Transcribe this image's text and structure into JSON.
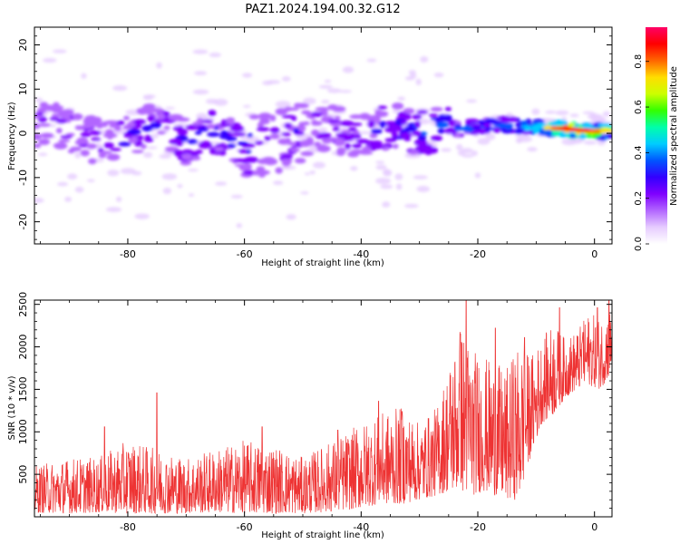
{
  "title": "PAZ1.2024.194.00.32.G12",
  "chart_data": [
    {
      "type": "heatmap",
      "name": "spectrogram",
      "xlabel": "Height of straight line (km)",
      "ylabel": "Frequency (Hz)",
      "xlim": [
        -96,
        3
      ],
      "ylim": [
        -25,
        24
      ],
      "xticks": [
        -80,
        -60,
        -40,
        -20,
        0
      ],
      "yticks": [
        -20,
        -10,
        0,
        10,
        20
      ],
      "colorbar": {
        "label": "Normalized spectral amplitude",
        "range": [
          0.0,
          0.95
        ],
        "ticks": [
          0.0,
          0.2,
          0.4,
          0.6,
          0.8
        ],
        "colormap": [
          "#ffffff",
          "#e6ccff",
          "#b266ff",
          "#7f00ff",
          "#3300ff",
          "#0055ff",
          "#00ccff",
          "#00ffaa",
          "#33ff00",
          "#ccff00",
          "#ffdd00",
          "#ff6600",
          "#ff0000",
          "#ff0066"
        ]
      },
      "ridge": {
        "description_free": true,
        "center_hz": [
          [
            -95,
            2
          ],
          [
            -90,
            1
          ],
          [
            -85,
            -2
          ],
          [
            -80,
            -1
          ],
          [
            -75,
            2
          ],
          [
            -70,
            -2
          ],
          [
            -65,
            0
          ],
          [
            -60,
            -3
          ],
          [
            -55,
            -2
          ],
          [
            -50,
            0
          ],
          [
            -45,
            1
          ],
          [
            -40,
            -1
          ],
          [
            -35,
            2
          ],
          [
            -30,
            0
          ],
          [
            -25,
            1
          ],
          [
            -20,
            1.5
          ],
          [
            -15,
            2
          ],
          [
            -10,
            1.5
          ],
          [
            -5,
            1
          ],
          [
            0,
            0.5
          ],
          [
            3,
            0.5
          ]
        ],
        "peak_amplitude": [
          [
            -95,
            0.25
          ],
          [
            -80,
            0.3
          ],
          [
            -65,
            0.35
          ],
          [
            -55,
            0.3
          ],
          [
            -40,
            0.3
          ],
          [
            -30,
            0.4
          ],
          [
            -22,
            0.45
          ],
          [
            -15,
            0.5
          ],
          [
            -10,
            0.6
          ],
          [
            -6,
            0.85
          ],
          [
            -2,
            0.9
          ],
          [
            3,
            0.7
          ]
        ]
      }
    },
    {
      "type": "line",
      "name": "snr",
      "xlabel": "Height of straight line (km)",
      "ylabel": "SNR (10 * v/v)",
      "xlim": [
        -96,
        3
      ],
      "ylim": [
        0,
        2550
      ],
      "xticks": [
        -80,
        -60,
        -40,
        -20,
        0
      ],
      "yticks": [
        500,
        1000,
        1500,
        2000,
        2500
      ],
      "color": "#ee3333",
      "envelope": {
        "x": [
          -96,
          -90,
          -85,
          -80,
          -75,
          -70,
          -65,
          -60,
          -55,
          -50,
          -45,
          -40,
          -37,
          -33,
          -30,
          -27,
          -25,
          -23,
          -21,
          -19,
          -17,
          -15,
          -13,
          -11,
          -9,
          -7,
          -5,
          -3,
          -1,
          1,
          3
        ],
        "low": [
          50,
          40,
          50,
          40,
          40,
          40,
          50,
          40,
          40,
          40,
          60,
          100,
          150,
          150,
          200,
          250,
          300,
          300,
          250,
          300,
          250,
          200,
          200,
          700,
          1100,
          1200,
          1400,
          1500,
          1550,
          1500,
          1700
        ],
        "high": [
          600,
          700,
          700,
          900,
          800,
          700,
          800,
          900,
          850,
          700,
          900,
          1100,
          1200,
          1300,
          1100,
          1300,
          1800,
          2300,
          2000,
          1900,
          1800,
          1750,
          2050,
          1900,
          2100,
          2300,
          2100,
          2200,
          2400,
          2350,
          2500
        ]
      },
      "peaks": [
        [
          -84,
          1060
        ],
        [
          -75,
          1460
        ],
        [
          -57,
          1060
        ],
        [
          -44,
          1020
        ],
        [
          -37,
          1360
        ],
        [
          -33,
          1240
        ],
        [
          -23,
          2150
        ],
        [
          -22,
          2560
        ],
        [
          -17,
          2220
        ],
        [
          -12,
          2110
        ],
        [
          -6,
          2460
        ],
        [
          -2,
          2170
        ],
        [
          0.5,
          2460
        ],
        [
          2.5,
          2560
        ]
      ]
    }
  ]
}
